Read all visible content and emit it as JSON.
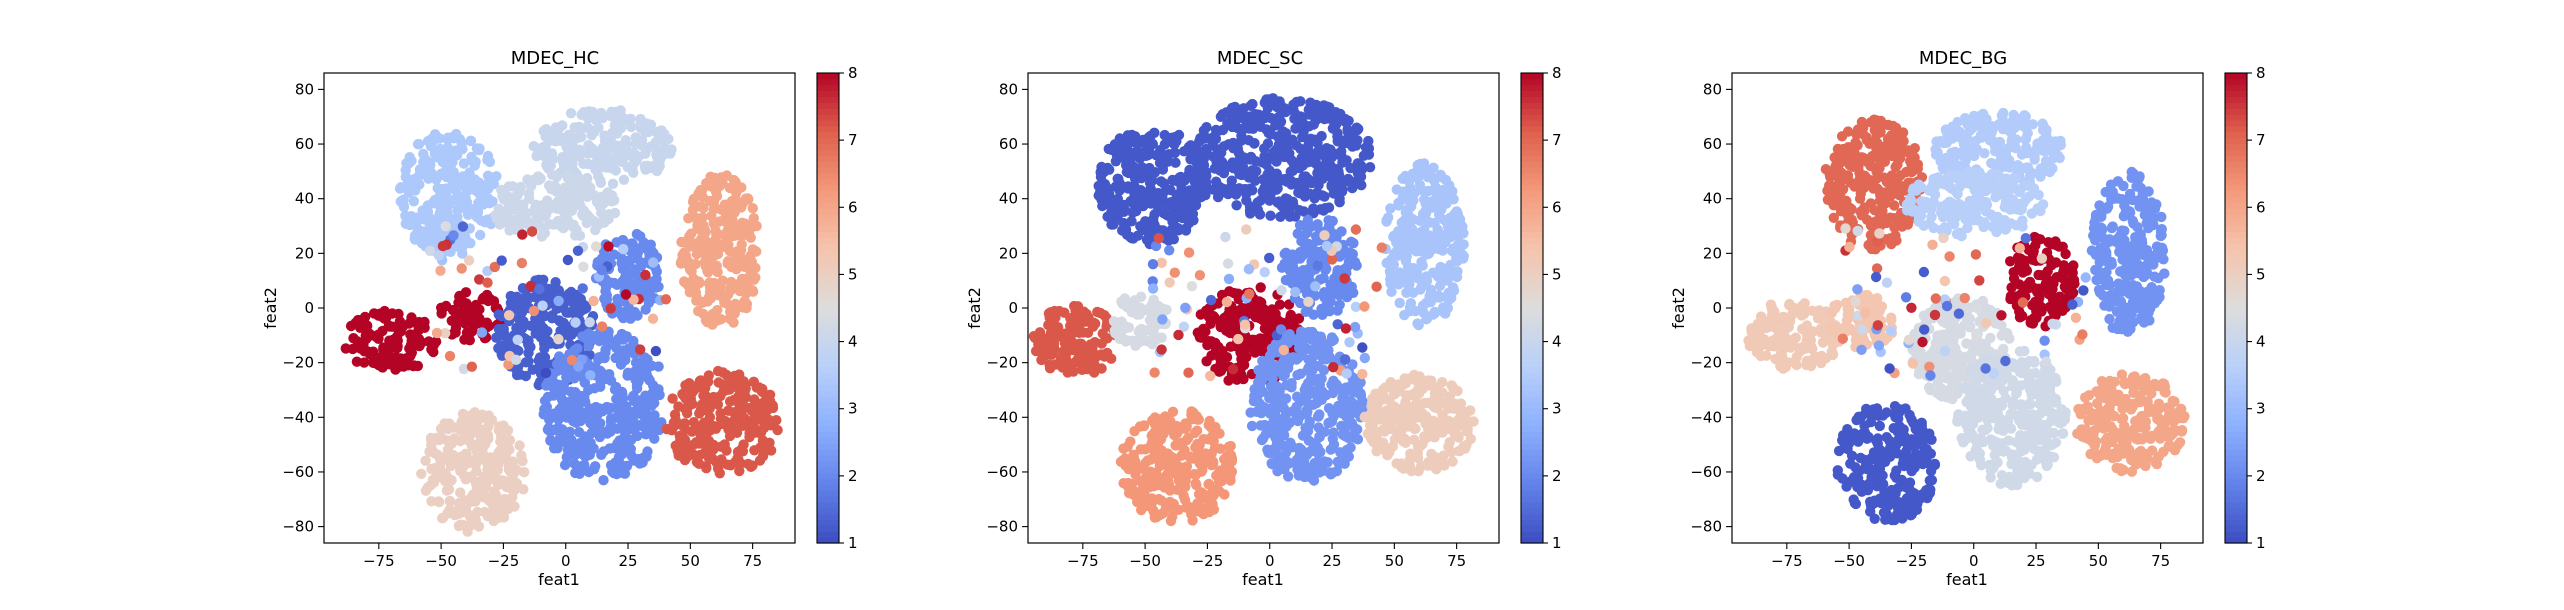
{
  "chart_data": [
    {
      "type": "scatter",
      "title": "MDEC_HC",
      "xlabel": "feat1",
      "ylabel": "feat2",
      "xlim": [
        -97,
        92
      ],
      "ylim": [
        -86,
        86
      ],
      "xticks": [
        -75,
        -50,
        -25,
        0,
        25,
        50,
        75
      ],
      "yticks": [
        -80,
        -60,
        -40,
        -20,
        0,
        20,
        40,
        60,
        80
      ],
      "colormap": "coolwarm",
      "color_range": [
        1,
        8
      ],
      "colorbar_ticks": [
        1,
        2,
        3,
        4,
        5,
        6,
        7,
        8
      ],
      "clusters": [
        {
          "cx": -47,
          "cy": 42,
          "rx": 20,
          "ry": 23,
          "value": 3.4
        },
        {
          "cx": 15,
          "cy": 59,
          "rx": 28,
          "ry": 14,
          "value": 4.0
        },
        {
          "cx": -5,
          "cy": 37,
          "rx": 26,
          "ry": 12,
          "value": 4.1
        },
        {
          "cx": -70,
          "cy": -12,
          "rx": 20,
          "ry": 11,
          "value": 8
        },
        {
          "cx": -38,
          "cy": -3,
          "rx": 13,
          "ry": 9,
          "value": 8
        },
        {
          "cx": -8,
          "cy": -9,
          "rx": 20,
          "ry": 20,
          "value": 1.3
        },
        {
          "cx": 25,
          "cy": 12,
          "rx": 13,
          "ry": 16,
          "value": 2.0
        },
        {
          "cx": 15,
          "cy": -36,
          "rx": 24,
          "ry": 28,
          "value": 2.0
        },
        {
          "cx": 62,
          "cy": 21,
          "rx": 16,
          "ry": 28,
          "value": 6.0
        },
        {
          "cx": 63,
          "cy": -42,
          "rx": 23,
          "ry": 19,
          "value": 7.2
        },
        {
          "cx": -37,
          "cy": -60,
          "rx": 21,
          "ry": 22,
          "value": 5.0
        }
      ]
    },
    {
      "type": "scatter",
      "title": "MDEC_SC",
      "xlabel": "feat1",
      "ylabel": "feat2",
      "xlim": [
        -97,
        92
      ],
      "ylim": [
        -86,
        86
      ],
      "xticks": [
        -75,
        -50,
        -25,
        0,
        25,
        50,
        75
      ],
      "yticks": [
        -80,
        -60,
        -40,
        -20,
        0,
        20,
        40,
        60,
        80
      ],
      "colormap": "coolwarm",
      "color_range": [
        1,
        8
      ],
      "colorbar_ticks": [
        1,
        2,
        3,
        4,
        5,
        6,
        7,
        8
      ],
      "clusters": [
        {
          "cx": -47,
          "cy": 45,
          "rx": 22,
          "ry": 22,
          "value": 1.2
        },
        {
          "cx": 5,
          "cy": 55,
          "rx": 36,
          "ry": 22,
          "value": 1.2
        },
        {
          "cx": -78,
          "cy": -12,
          "rx": 17,
          "ry": 13,
          "value": 7.2
        },
        {
          "cx": -52,
          "cy": -5,
          "rx": 12,
          "ry": 10,
          "value": 4.3
        },
        {
          "cx": -8,
          "cy": -10,
          "rx": 22,
          "ry": 18,
          "value": 8
        },
        {
          "cx": 20,
          "cy": 15,
          "rx": 16,
          "ry": 18,
          "value": 2.0
        },
        {
          "cx": 15,
          "cy": -36,
          "rx": 23,
          "ry": 28,
          "value": 2.2
        },
        {
          "cx": 62,
          "cy": 23,
          "rx": 16,
          "ry": 30,
          "value": 3.3
        },
        {
          "cx": 60,
          "cy": -42,
          "rx": 22,
          "ry": 18,
          "value": 5.1
        },
        {
          "cx": -37,
          "cy": -58,
          "rx": 23,
          "ry": 21,
          "value": 6.3
        }
      ]
    },
    {
      "type": "scatter",
      "title": "MDEC_BG",
      "xlabel": "feat1",
      "ylabel": "feat2",
      "xlim": [
        -97,
        92
      ],
      "ylim": [
        -86,
        86
      ],
      "xticks": [
        -75,
        -50,
        -25,
        0,
        25,
        50,
        75
      ],
      "yticks": [
        -80,
        -60,
        -40,
        -20,
        0,
        20,
        40,
        60,
        80
      ],
      "colormap": "coolwarm",
      "color_range": [
        1,
        8
      ],
      "colorbar_ticks": [
        1,
        2,
        3,
        4,
        5,
        6,
        7,
        8
      ],
      "clusters": [
        {
          "cx": -40,
          "cy": 45,
          "rx": 20,
          "ry": 24,
          "value": 7.0
        },
        {
          "cx": 10,
          "cy": 58,
          "rx": 26,
          "ry": 14,
          "value": 3.5
        },
        {
          "cx": 0,
          "cy": 38,
          "rx": 28,
          "ry": 12,
          "value": 3.6
        },
        {
          "cx": -72,
          "cy": -10,
          "rx": 19,
          "ry": 13,
          "value": 5.2
        },
        {
          "cx": -45,
          "cy": -5,
          "rx": 14,
          "ry": 10,
          "value": 5.3
        },
        {
          "cx": -5,
          "cy": -15,
          "rx": 20,
          "ry": 20,
          "value": 4.3
        },
        {
          "cx": 15,
          "cy": -40,
          "rx": 22,
          "ry": 25,
          "value": 4.2
        },
        {
          "cx": 27,
          "cy": 10,
          "rx": 14,
          "ry": 17,
          "value": 8
        },
        {
          "cx": 62,
          "cy": 20,
          "rx": 15,
          "ry": 30,
          "value": 2.2
        },
        {
          "cx": 63,
          "cy": -42,
          "rx": 22,
          "ry": 18,
          "value": 6.0
        },
        {
          "cx": -35,
          "cy": -57,
          "rx": 20,
          "ry": 22,
          "value": 1.2
        }
      ]
    }
  ]
}
